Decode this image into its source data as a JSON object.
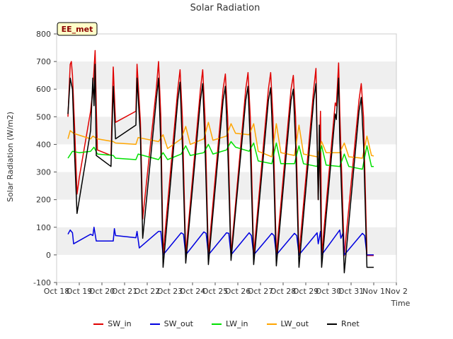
{
  "chart_data": {
    "type": "line",
    "title": "Solar Radiation",
    "xlabel": "Time",
    "ylabel": "Solar Radiation (W/m2)",
    "site_label": "EE_met",
    "x_ticks": [
      "Oct 18",
      "Oct 19",
      "Oct 20",
      "Oct 21",
      "Oct 22",
      "Oct 23",
      "Oct 24",
      "Oct 25",
      "Oct 26",
      "Oct 27",
      "Oct 28",
      "Oct 29",
      "Oct 30",
      "Oct 31",
      "Nov 1",
      "Nov 2"
    ],
    "y_ticks": [
      -100,
      0,
      100,
      200,
      300,
      400,
      500,
      600,
      700,
      800
    ],
    "ylim": [
      -100,
      800
    ],
    "xlim": [
      0,
      15
    ],
    "grid": "horizontal-bands",
    "legend_position": "bottom",
    "series": [
      {
        "name": "SW_in",
        "color": "#e00000",
        "points": [
          [
            0.5,
            500
          ],
          [
            0.6,
            690
          ],
          [
            0.65,
            700
          ],
          [
            0.7,
            650
          ],
          [
            0.8,
            450
          ],
          [
            0.9,
            220
          ],
          [
            1.0,
            280
          ],
          [
            1.5,
            520
          ],
          [
            1.6,
            600
          ],
          [
            1.7,
            740
          ],
          [
            1.75,
            540
          ],
          [
            1.8,
            380
          ],
          [
            2.4,
            360
          ],
          [
            2.5,
            680
          ],
          [
            2.6,
            480
          ],
          [
            3.5,
            520
          ],
          [
            3.55,
            690
          ],
          [
            3.7,
            480
          ],
          [
            3.8,
            130
          ],
          [
            4.4,
            600
          ],
          [
            4.5,
            700
          ],
          [
            4.6,
            500
          ],
          [
            4.7,
            0
          ],
          [
            5.35,
            600
          ],
          [
            5.45,
            670
          ],
          [
            5.55,
            500
          ],
          [
            5.7,
            0
          ],
          [
            6.35,
            600
          ],
          [
            6.45,
            670
          ],
          [
            6.55,
            500
          ],
          [
            6.7,
            0
          ],
          [
            7.35,
            600
          ],
          [
            7.45,
            655
          ],
          [
            7.55,
            500
          ],
          [
            7.7,
            0
          ],
          [
            8.35,
            600
          ],
          [
            8.45,
            660
          ],
          [
            8.55,
            500
          ],
          [
            8.7,
            -2
          ],
          [
            9.35,
            600
          ],
          [
            9.45,
            660
          ],
          [
            9.55,
            500
          ],
          [
            9.7,
            -2
          ],
          [
            10.35,
            600
          ],
          [
            10.45,
            650
          ],
          [
            10.55,
            500
          ],
          [
            10.7,
            -2
          ],
          [
            11.35,
            600
          ],
          [
            11.45,
            675
          ],
          [
            11.55,
            200
          ],
          [
            11.65,
            520
          ],
          [
            11.7,
            -2
          ],
          [
            12.3,
            550
          ],
          [
            12.35,
            540
          ],
          [
            12.45,
            695
          ],
          [
            12.5,
            520
          ],
          [
            12.7,
            -3
          ],
          [
            13.35,
            560
          ],
          [
            13.45,
            620
          ],
          [
            13.55,
            500
          ],
          [
            13.7,
            -2
          ],
          [
            14.0,
            -2
          ]
        ]
      },
      {
        "name": "SW_out",
        "color": "#0000e0",
        "points": [
          [
            0.5,
            75
          ],
          [
            0.6,
            90
          ],
          [
            0.7,
            80
          ],
          [
            0.75,
            40
          ],
          [
            1.5,
            75
          ],
          [
            1.6,
            70
          ],
          [
            1.65,
            100
          ],
          [
            1.75,
            50
          ],
          [
            2.5,
            50
          ],
          [
            2.55,
            95
          ],
          [
            2.6,
            70
          ],
          [
            3.5,
            62
          ],
          [
            3.55,
            85
          ],
          [
            3.65,
            25
          ],
          [
            4.5,
            85
          ],
          [
            4.6,
            85
          ],
          [
            4.7,
            0
          ],
          [
            5.5,
            80
          ],
          [
            5.6,
            75
          ],
          [
            5.7,
            0
          ],
          [
            6.5,
            83
          ],
          [
            6.6,
            78
          ],
          [
            6.7,
            0
          ],
          [
            7.5,
            80
          ],
          [
            7.6,
            78
          ],
          [
            7.7,
            0
          ],
          [
            8.5,
            80
          ],
          [
            8.6,
            70
          ],
          [
            8.7,
            0
          ],
          [
            9.5,
            78
          ],
          [
            9.6,
            70
          ],
          [
            9.7,
            0
          ],
          [
            10.5,
            78
          ],
          [
            10.6,
            70
          ],
          [
            10.7,
            0
          ],
          [
            11.5,
            80
          ],
          [
            11.55,
            40
          ],
          [
            11.65,
            85
          ],
          [
            11.7,
            0
          ],
          [
            12.5,
            90
          ],
          [
            12.55,
            60
          ],
          [
            12.65,
            80
          ],
          [
            12.7,
            0
          ],
          [
            13.5,
            78
          ],
          [
            13.6,
            70
          ],
          [
            13.7,
            0
          ],
          [
            14.0,
            0
          ]
        ]
      },
      {
        "name": "LW_in",
        "color": "#00e000",
        "points": [
          [
            0.5,
            350
          ],
          [
            0.7,
            375
          ],
          [
            1.0,
            370
          ],
          [
            1.5,
            375
          ],
          [
            1.65,
            390
          ],
          [
            1.8,
            365
          ],
          [
            2.5,
            360
          ],
          [
            2.6,
            350
          ],
          [
            3.5,
            345
          ],
          [
            3.6,
            365
          ],
          [
            4.5,
            345
          ],
          [
            4.7,
            370
          ],
          [
            4.9,
            345
          ],
          [
            5.5,
            365
          ],
          [
            5.7,
            395
          ],
          [
            5.9,
            360
          ],
          [
            6.5,
            370
          ],
          [
            6.7,
            400
          ],
          [
            6.9,
            365
          ],
          [
            7.5,
            380
          ],
          [
            7.7,
            410
          ],
          [
            7.9,
            390
          ],
          [
            8.5,
            375
          ],
          [
            8.7,
            405
          ],
          [
            8.9,
            340
          ],
          [
            9.5,
            330
          ],
          [
            9.7,
            405
          ],
          [
            9.9,
            330
          ],
          [
            10.5,
            330
          ],
          [
            10.7,
            395
          ],
          [
            10.9,
            330
          ],
          [
            11.5,
            320
          ],
          [
            11.7,
            395
          ],
          [
            11.9,
            325
          ],
          [
            12.5,
            320
          ],
          [
            12.7,
            365
          ],
          [
            12.9,
            320
          ],
          [
            13.5,
            310
          ],
          [
            13.7,
            395
          ],
          [
            13.9,
            320
          ],
          [
            14.0,
            320
          ]
        ]
      },
      {
        "name": "LW_out",
        "color": "#ffa500",
        "points": [
          [
            0.5,
            420
          ],
          [
            0.6,
            450
          ],
          [
            0.75,
            440
          ],
          [
            1.5,
            420
          ],
          [
            1.6,
            430
          ],
          [
            1.8,
            420
          ],
          [
            2.5,
            410
          ],
          [
            2.6,
            405
          ],
          [
            3.5,
            400
          ],
          [
            3.6,
            425
          ],
          [
            4.5,
            410
          ],
          [
            4.7,
            435
          ],
          [
            4.9,
            385
          ],
          [
            5.5,
            420
          ],
          [
            5.7,
            465
          ],
          [
            5.9,
            400
          ],
          [
            6.5,
            420
          ],
          [
            6.7,
            480
          ],
          [
            6.9,
            415
          ],
          [
            7.5,
            430
          ],
          [
            7.7,
            475
          ],
          [
            7.9,
            440
          ],
          [
            8.5,
            435
          ],
          [
            8.7,
            475
          ],
          [
            8.9,
            375
          ],
          [
            9.5,
            355
          ],
          [
            9.7,
            475
          ],
          [
            9.9,
            370
          ],
          [
            10.5,
            360
          ],
          [
            10.7,
            470
          ],
          [
            10.9,
            365
          ],
          [
            11.5,
            355
          ],
          [
            11.7,
            410
          ],
          [
            11.9,
            370
          ],
          [
            12.5,
            370
          ],
          [
            12.7,
            405
          ],
          [
            12.9,
            355
          ],
          [
            13.5,
            350
          ],
          [
            13.7,
            430
          ],
          [
            13.9,
            360
          ],
          [
            14.0,
            358
          ]
        ]
      },
      {
        "name": "Rnet",
        "color": "#000000",
        "points": [
          [
            0.5,
            510
          ],
          [
            0.6,
            640
          ],
          [
            0.7,
            600
          ],
          [
            0.8,
            350
          ],
          [
            0.9,
            150
          ],
          [
            1.0,
            200
          ],
          [
            1.5,
            450
          ],
          [
            1.6,
            640
          ],
          [
            1.65,
            540
          ],
          [
            1.7,
            690
          ],
          [
            1.75,
            360
          ],
          [
            2.4,
            320
          ],
          [
            2.5,
            610
          ],
          [
            2.6,
            420
          ],
          [
            3.5,
            470
          ],
          [
            3.55,
            640
          ],
          [
            3.7,
            430
          ],
          [
            3.8,
            60
          ],
          [
            4.4,
            560
          ],
          [
            4.5,
            640
          ],
          [
            4.6,
            400
          ],
          [
            4.7,
            -45
          ],
          [
            5.35,
            560
          ],
          [
            5.45,
            625
          ],
          [
            5.55,
            400
          ],
          [
            5.7,
            -30
          ],
          [
            6.35,
            560
          ],
          [
            6.45,
            620
          ],
          [
            6.55,
            400
          ],
          [
            6.7,
            -35
          ],
          [
            7.35,
            560
          ],
          [
            7.45,
            610
          ],
          [
            7.55,
            400
          ],
          [
            7.7,
            -20
          ],
          [
            8.35,
            560
          ],
          [
            8.45,
            610
          ],
          [
            8.55,
            400
          ],
          [
            8.7,
            -35
          ],
          [
            9.35,
            560
          ],
          [
            9.45,
            605
          ],
          [
            9.55,
            400
          ],
          [
            9.7,
            -40
          ],
          [
            10.35,
            560
          ],
          [
            10.45,
            600
          ],
          [
            10.55,
            400
          ],
          [
            10.7,
            -45
          ],
          [
            11.35,
            560
          ],
          [
            11.45,
            620
          ],
          [
            11.55,
            200
          ],
          [
            11.6,
            470
          ],
          [
            11.7,
            -45
          ],
          [
            12.3,
            510
          ],
          [
            12.35,
            490
          ],
          [
            12.45,
            640
          ],
          [
            12.5,
            420
          ],
          [
            12.7,
            -65
          ],
          [
            13.35,
            520
          ],
          [
            13.45,
            570
          ],
          [
            13.55,
            400
          ],
          [
            13.7,
            -45
          ],
          [
            14.0,
            -45
          ]
        ]
      }
    ]
  }
}
